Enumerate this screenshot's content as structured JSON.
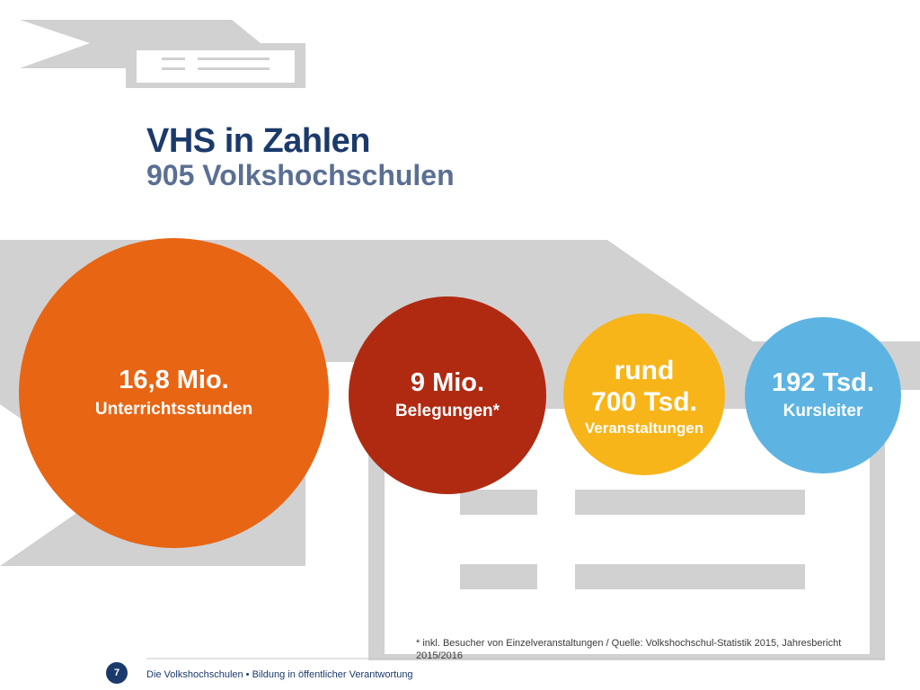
{
  "header": {
    "title": "VHS in Zahlen",
    "subtitle": "905 Volkshochschulen"
  },
  "stats": [
    {
      "value": "16,8 Mio.",
      "label": "Unterrichtsstunden",
      "color": "#e86514"
    },
    {
      "value": "9 Mio.",
      "label": "Belegungen*",
      "color": "#b02a12"
    },
    {
      "value": "rund 700 Tsd.",
      "value_line1": "rund",
      "value_line2": "700 Tsd.",
      "label": "Veranstaltungen",
      "color": "#f7b51a"
    },
    {
      "value": "192 Tsd.",
      "label": "Kursleiter",
      "color": "#5db4e3"
    }
  ],
  "footnote": "* inkl. Besucher von Einzelveranstaltungen / Quelle: Volkshochschul-Statistik 2015, Jahresbericht 2015/2016",
  "footer": {
    "page_number": "7",
    "text": "Die Volkshochschulen • Bildung in öffentlicher Verantwortung"
  },
  "colors": {
    "title": "#1b3a6b",
    "subtitle": "#5b6f93",
    "decoration": "#d1d1d1"
  }
}
